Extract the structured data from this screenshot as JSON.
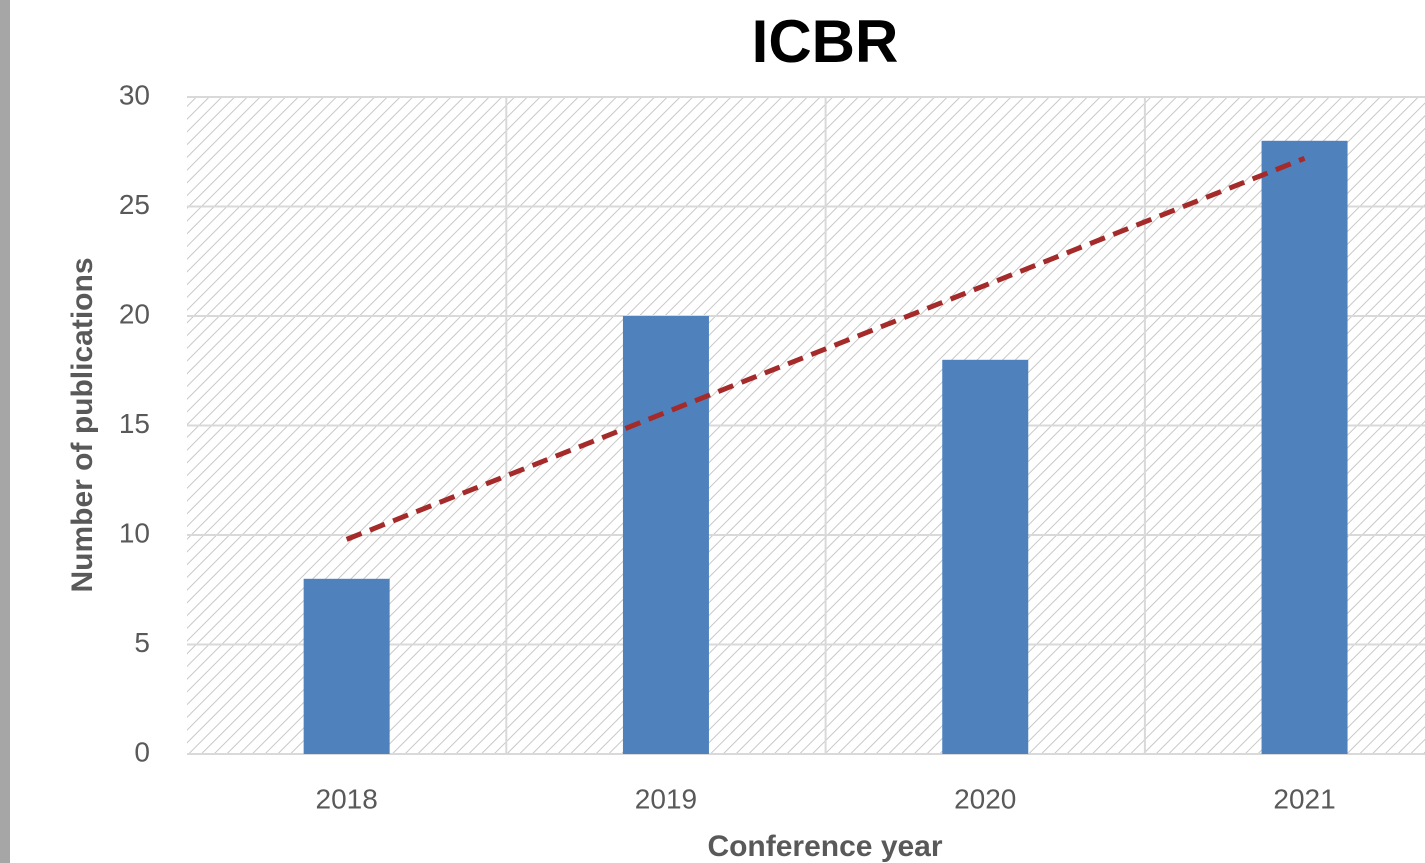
{
  "chart_data": {
    "type": "bar",
    "title": "ICBR",
    "x_label": "Conference year",
    "y_label": "Number of publications",
    "categories": [
      "2018",
      "2019",
      "2020",
      "2021"
    ],
    "values": [
      8,
      20,
      18,
      28
    ],
    "color": "#4f81bd",
    "trendline": {
      "color": "#a52a2a",
      "values": [
        9.8,
        15.6,
        21.4,
        27.2
      ]
    },
    "ylim": [
      0,
      30
    ],
    "yticks": [
      0,
      5,
      10,
      15,
      20,
      25,
      30
    ],
    "grid": true
  }
}
